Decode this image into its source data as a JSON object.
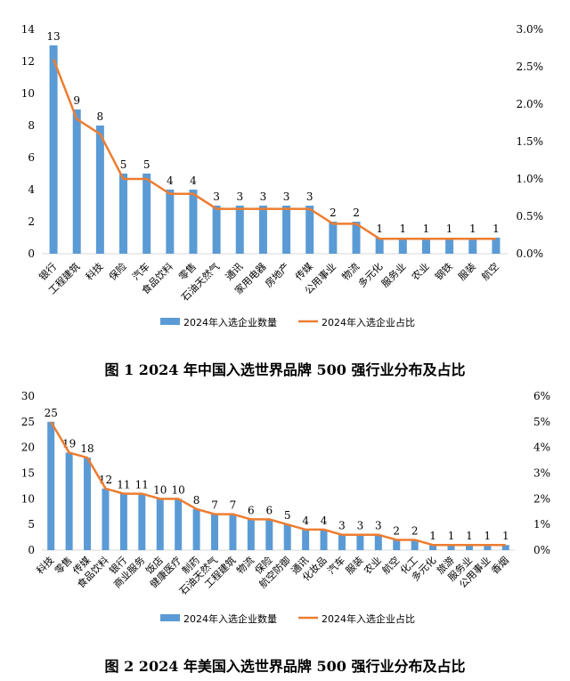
{
  "chart_data": [
    {
      "type": "bar+line",
      "title": "图 1 2024 年中国入选世界品牌 500 强行业分布及占比",
      "categories": [
        "银行",
        "工程建筑",
        "科技",
        "保险",
        "汽车",
        "食品饮料",
        "零售",
        "石油天然气",
        "通讯",
        "家用电器",
        "房地产",
        "传媒",
        "公用事业",
        "物流",
        "多元化",
        "服务业",
        "农业",
        "钢铁",
        "服装",
        "航空"
      ],
      "series": [
        {
          "name": "2024年入选企业数量",
          "type": "bar",
          "axis": "left",
          "color": "#5B9BD5",
          "values": [
            13,
            9,
            8,
            5,
            5,
            4,
            4,
            3,
            3,
            3,
            3,
            3,
            2,
            2,
            1,
            1,
            1,
            1,
            1,
            1
          ]
        },
        {
          "name": "2024年入选企业占比",
          "type": "line",
          "axis": "right",
          "color": "#ED7D31",
          "values": [
            2.6,
            1.8,
            1.6,
            1.0,
            1.0,
            0.8,
            0.8,
            0.6,
            0.6,
            0.6,
            0.6,
            0.6,
            0.4,
            0.4,
            0.2,
            0.2,
            0.2,
            0.2,
            0.2,
            0.2
          ]
        }
      ],
      "ylim": [
        0,
        14
      ],
      "yticks": [
        0,
        2,
        4,
        6,
        8,
        10,
        12,
        14
      ],
      "y2lim": [
        0,
        3.0
      ],
      "y2ticks": [
        "0.0%",
        "0.5%",
        "1.0%",
        "1.5%",
        "2.0%",
        "2.5%",
        "3.0%"
      ],
      "legend": "bottom",
      "grid": false
    },
    {
      "type": "bar+line",
      "title": "图 2 2024 年美国入选世界品牌 500 强行业分布及占比",
      "categories": [
        "科技",
        "零售",
        "传媒",
        "食品饮料",
        "银行",
        "商业服务",
        "饭店",
        "健康医疗",
        "制药",
        "石油天然气",
        "工程建筑",
        "物流",
        "保险",
        "航空防御",
        "通讯",
        "化妆品",
        "汽车",
        "服装",
        "农业",
        "航空",
        "化工",
        "多元化",
        "旅游",
        "服务业",
        "公用事业",
        "香烟"
      ],
      "series": [
        {
          "name": "2024年入选企业数量",
          "type": "bar",
          "axis": "left",
          "color": "#5B9BD5",
          "values": [
            25,
            19,
            18,
            12,
            11,
            11,
            10,
            10,
            8,
            7,
            7,
            6,
            6,
            5,
            4,
            4,
            3,
            3,
            3,
            2,
            2,
            1,
            1,
            1,
            1,
            1
          ]
        },
        {
          "name": "2024年入选企业占比",
          "type": "line",
          "axis": "right",
          "color": "#ED7D31",
          "values": [
            5.0,
            3.8,
            3.6,
            2.4,
            2.2,
            2.2,
            2.0,
            2.0,
            1.6,
            1.4,
            1.4,
            1.2,
            1.2,
            1.0,
            0.8,
            0.8,
            0.6,
            0.6,
            0.6,
            0.4,
            0.4,
            0.2,
            0.2,
            0.2,
            0.2,
            0.2
          ]
        }
      ],
      "ylim": [
        0,
        30
      ],
      "yticks": [
        0,
        5,
        10,
        15,
        20,
        25,
        30
      ],
      "y2lim": [
        0,
        6
      ],
      "y2ticks": [
        "0%",
        "1%",
        "2%",
        "3%",
        "4%",
        "5%",
        "6%"
      ],
      "legend": "bottom",
      "grid": false
    }
  ]
}
